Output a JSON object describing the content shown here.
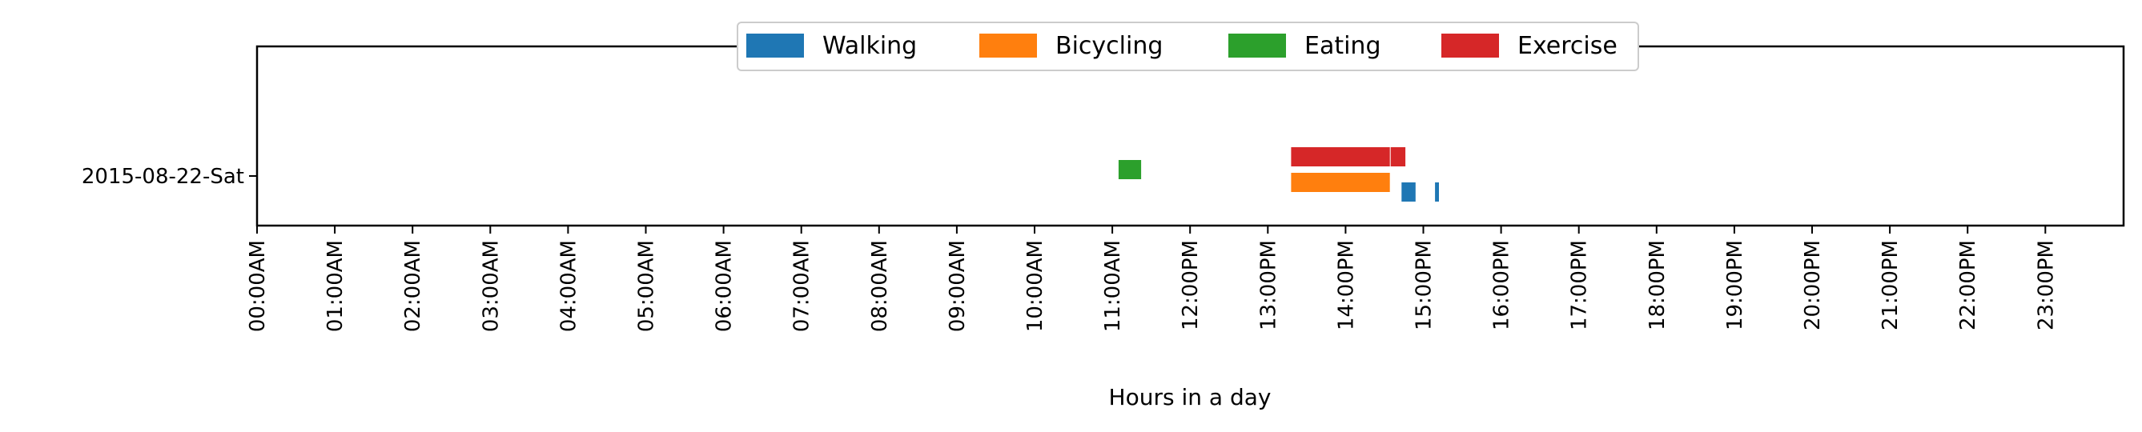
{
  "chart_data": {
    "type": "timeline",
    "xlabel": "Hours in a day",
    "ylabel": "",
    "xlim": [
      0,
      24
    ],
    "x_ticks": [
      "00:00AM",
      "01:00AM",
      "02:00AM",
      "03:00AM",
      "04:00AM",
      "05:00AM",
      "06:00AM",
      "07:00AM",
      "08:00AM",
      "09:00AM",
      "10:00AM",
      "11:00AM",
      "12:00PM",
      "13:00PM",
      "14:00PM",
      "15:00PM",
      "16:00PM",
      "17:00PM",
      "18:00PM",
      "19:00PM",
      "20:00PM",
      "21:00PM",
      "22:00PM",
      "23:00PM"
    ],
    "categories": [
      "2015-08-22-Sat"
    ],
    "legend_position": "top-center",
    "grid": false,
    "series": [
      {
        "name": "Walking",
        "color": "#1f77b4",
        "lane": -0.5,
        "intervals": [
          [
            14.72,
            14.9
          ],
          [
            15.15,
            15.2
          ]
        ]
      },
      {
        "name": "Bicycling",
        "color": "#ff7f0e",
        "lane": -0.2,
        "intervals": [
          [
            13.3,
            14.57
          ]
        ]
      },
      {
        "name": "Eating",
        "color": "#2ca02c",
        "lane": 0.2,
        "intervals": [
          [
            11.08,
            11.37
          ]
        ]
      },
      {
        "name": "Exercise",
        "color": "#d62728",
        "lane": 0.6,
        "intervals": [
          [
            13.3,
            14.57
          ],
          [
            14.58,
            14.77
          ]
        ]
      }
    ]
  }
}
